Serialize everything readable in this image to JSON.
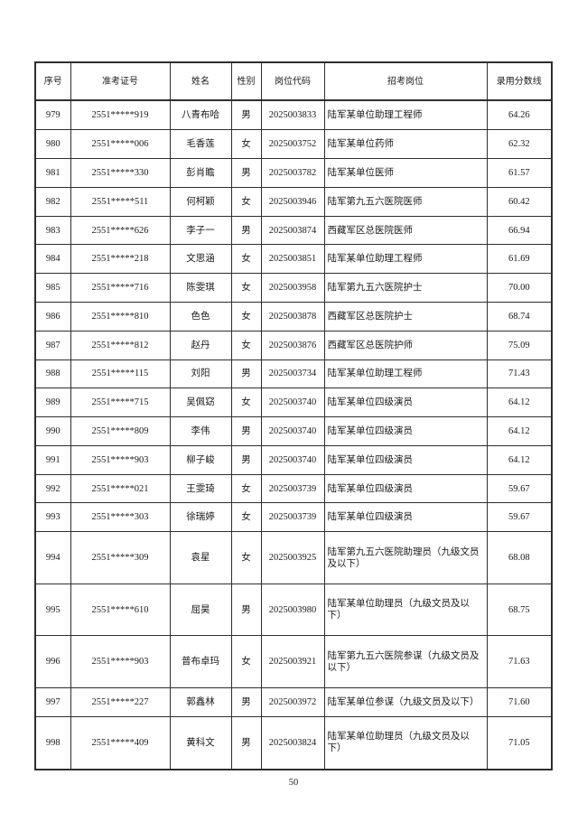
{
  "page": {
    "number": "50"
  },
  "table": {
    "headers": [
      "序号",
      "准考证号",
      "姓名",
      "性别",
      "岗位代码",
      "招考岗位",
      "录用分数线"
    ],
    "rows": [
      [
        "979",
        "2551*****919",
        "八青布哈",
        "男",
        "2025003833",
        "陆军某单位助理工程师",
        "64.26"
      ],
      [
        "980",
        "2551*****006",
        "毛香莲",
        "女",
        "2025003752",
        "陆军某单位药师",
        "62.32"
      ],
      [
        "981",
        "2551*****330",
        "彭肖瞻",
        "男",
        "2025003782",
        "陆军某单位医师",
        "61.57"
      ],
      [
        "982",
        "2551*****511",
        "何柯颖",
        "女",
        "2025003946",
        "陆军第九五六医院医师",
        "60.42"
      ],
      [
        "983",
        "2551*****626",
        "李子一",
        "男",
        "2025003874",
        "西藏军区总医院医师",
        "66.94"
      ],
      [
        "984",
        "2551*****218",
        "文思涵",
        "女",
        "2025003851",
        "陆军某单位助理工程师",
        "61.69"
      ],
      [
        "985",
        "2551*****716",
        "陈雯琪",
        "女",
        "2025003958",
        "陆军第九五六医院护士",
        "70.00"
      ],
      [
        "986",
        "2551*****810",
        "色色",
        "女",
        "2025003878",
        "西藏军区总医院护士",
        "68.74"
      ],
      [
        "987",
        "2551*****812",
        "赵丹",
        "女",
        "2025003876",
        "西藏军区总医院护师",
        "75.09"
      ],
      [
        "988",
        "2551*****115",
        "刘阳",
        "男",
        "2025003734",
        "陆军某单位助理工程师",
        "71.43"
      ],
      [
        "989",
        "2551*****715",
        "吴佩窈",
        "女",
        "2025003740",
        "陆军某单位四级演员",
        "64.12"
      ],
      [
        "990",
        "2551*****809",
        "李伟",
        "男",
        "2025003740",
        "陆军某单位四级演员",
        "64.12"
      ],
      [
        "991",
        "2551*****903",
        "柳子峻",
        "男",
        "2025003740",
        "陆军某单位四级演员",
        "64.12"
      ],
      [
        "992",
        "2551*****021",
        "王雯琦",
        "女",
        "2025003739",
        "陆军某单位四级演员",
        "59.67"
      ],
      [
        "993",
        "2551*****303",
        "徐瑞婷",
        "女",
        "2025003739",
        "陆军某单位四级演员",
        "59.67"
      ],
      [
        "994",
        "2551*****309",
        "袁星",
        "女",
        "2025003925",
        "陆军第九五六医院助理员（九级文员及以下）",
        "68.08"
      ],
      [
        "995",
        "2551*****610",
        "屈昊",
        "男",
        "2025003980",
        "陆军某单位助理员（九级文员及以下）",
        "68.75"
      ],
      [
        "996",
        "2551*****903",
        "普布卓玛",
        "女",
        "2025003921",
        "陆军第九五六医院参谋（九级文员及以下）",
        "71.63"
      ],
      [
        "997",
        "2551*****227",
        "郭鑫林",
        "男",
        "2025003972",
        "陆军某单位参谋（九级文员及以下）",
        "71.60"
      ],
      [
        "998",
        "2551*****409",
        "黄科文",
        "男",
        "2025003824",
        "陆军某单位助理员（九级文员及以下）",
        "71.05"
      ]
    ]
  }
}
